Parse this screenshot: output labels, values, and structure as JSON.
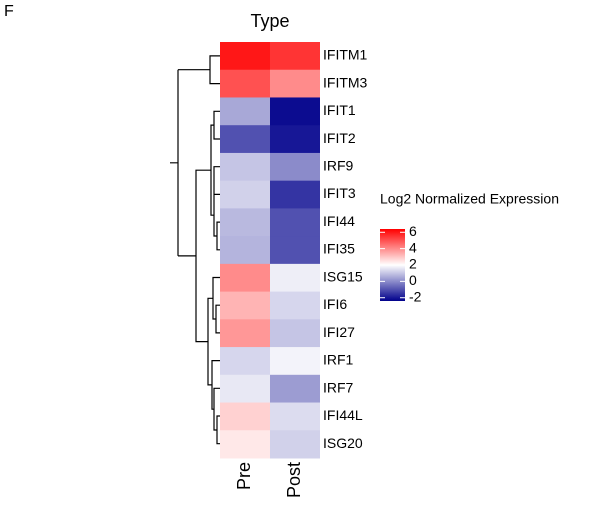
{
  "chart_data": {
    "type": "heatmap",
    "panel_label": "F",
    "title": "Type",
    "rows": [
      "IFITM1",
      "IFITM3",
      "IFIT1",
      "IFIT2",
      "IRF9",
      "IFIT3",
      "IFI44",
      "IFI35",
      "ISG15",
      "IFI6",
      "IFI27",
      "IRF1",
      "IRF7",
      "IFI44L",
      "ISG20"
    ],
    "columns": [
      "Pre",
      "Post"
    ],
    "values": [
      [
        6,
        5.5
      ],
      [
        5,
        4
      ],
      [
        0.5,
        -2.2
      ],
      [
        -1,
        -2
      ],
      [
        1,
        0
      ],
      [
        1.2,
        -1.5
      ],
      [
        0.8,
        -1
      ],
      [
        0.7,
        -1
      ],
      [
        4,
        1.7
      ],
      [
        3.3,
        1.3
      ],
      [
        3.8,
        1
      ],
      [
        1.3,
        1.8
      ],
      [
        1.6,
        0.3
      ],
      [
        2.8,
        1.4
      ],
      [
        2.4,
        1.2
      ]
    ],
    "legend_title": "Log2 Normalized Expression",
    "clim": [
      -2.4,
      6.4
    ],
    "cticks": [
      6,
      4,
      2,
      0,
      -2
    ],
    "colorscale": {
      "low": "#00008B",
      "mid": "#FFFFFF",
      "high": "#FF0000",
      "midpoint": 2
    }
  }
}
